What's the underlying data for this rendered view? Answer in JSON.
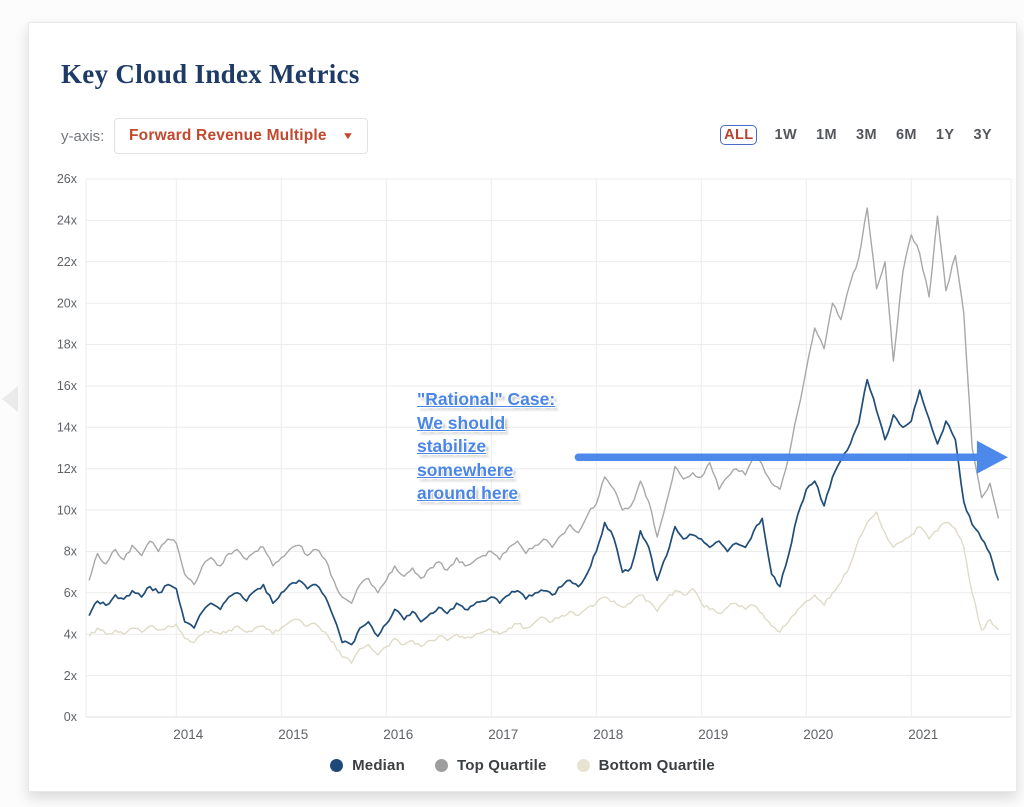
{
  "header": {
    "title": "Key Cloud Index Metrics"
  },
  "controls": {
    "y_axis_label": "y-axis:",
    "dropdown_value": "Forward Revenue Multiple",
    "ranges": [
      "ALL",
      "1W",
      "1M",
      "3M",
      "6M",
      "1Y",
      "3Y"
    ],
    "selected_range": "ALL"
  },
  "annotation": {
    "lines": [
      "\"Rational\" Case:",
      "We should",
      "stabilize",
      "somewhere",
      "around here"
    ],
    "color": "#4a86e8"
  },
  "legend": [
    {
      "label": "Median",
      "color": "#1e4877"
    },
    {
      "label": "Top Quartile",
      "color": "#9e9e9e"
    },
    {
      "label": "Bottom Quartile",
      "color": "#e8e3d1"
    }
  ],
  "colors": {
    "title": "#1d3b66",
    "dropdown_text": "#c2492e",
    "selected_range_text": "#b9412e",
    "selected_range_border": "#4a6bc6",
    "gridline": "#ececec",
    "axis_text": "#5f6368",
    "arrow_blue": "#4483ea"
  },
  "chart_data": {
    "type": "line",
    "title": "Key Cloud Index Metrics",
    "y_axis_metric": "Forward Revenue Multiple",
    "ylim": [
      0,
      26
    ],
    "y_ticks": [
      0,
      2,
      4,
      6,
      8,
      10,
      12,
      14,
      16,
      18,
      20,
      22,
      24,
      26
    ],
    "y_tick_labels": [
      "0x",
      "2x",
      "4x",
      "6x",
      "8x",
      "10x",
      "12x",
      "14x",
      "16x",
      "18x",
      "20x",
      "22x",
      "24x",
      "26x"
    ],
    "xlim": [
      2013.14,
      2021.95
    ],
    "x_ticks": [
      2014,
      2015,
      2016,
      2017,
      2018,
      2019,
      2020,
      2021
    ],
    "x_tick_labels": [
      "2014",
      "2015",
      "2016",
      "2017",
      "2018",
      "2019",
      "2020",
      "2021"
    ],
    "grid": true,
    "legend_position": "bottom",
    "x": [
      2013.17,
      2013.25,
      2013.33,
      2013.42,
      2013.5,
      2013.58,
      2013.67,
      2013.75,
      2013.83,
      2013.92,
      2014.0,
      2014.08,
      2014.17,
      2014.25,
      2014.33,
      2014.42,
      2014.5,
      2014.58,
      2014.67,
      2014.75,
      2014.83,
      2014.92,
      2015.0,
      2015.08,
      2015.17,
      2015.25,
      2015.33,
      2015.42,
      2015.5,
      2015.58,
      2015.67,
      2015.75,
      2015.83,
      2015.92,
      2016.0,
      2016.08,
      2016.17,
      2016.25,
      2016.33,
      2016.42,
      2016.5,
      2016.58,
      2016.67,
      2016.75,
      2016.83,
      2016.92,
      2017.0,
      2017.08,
      2017.17,
      2017.25,
      2017.33,
      2017.42,
      2017.5,
      2017.58,
      2017.67,
      2017.75,
      2017.83,
      2017.92,
      2018.0,
      2018.08,
      2018.17,
      2018.25,
      2018.33,
      2018.42,
      2018.5,
      2018.58,
      2018.67,
      2018.75,
      2018.83,
      2018.92,
      2019.0,
      2019.08,
      2019.17,
      2019.25,
      2019.33,
      2019.42,
      2019.5,
      2019.58,
      2019.67,
      2019.75,
      2019.83,
      2019.92,
      2020.0,
      2020.08,
      2020.17,
      2020.25,
      2020.33,
      2020.42,
      2020.5,
      2020.58,
      2020.67,
      2020.75,
      2020.83,
      2020.92,
      2021.0,
      2021.08,
      2021.17,
      2021.25,
      2021.33,
      2021.42,
      2021.5,
      2021.58,
      2021.67,
      2021.75,
      2021.83
    ],
    "series": [
      {
        "name": "Median",
        "color": "#214e78",
        "values": [
          4.9,
          5.6,
          5.4,
          5.9,
          5.7,
          6.1,
          5.8,
          6.3,
          6.0,
          6.4,
          6.2,
          4.6,
          4.3,
          5.1,
          5.5,
          5.2,
          5.8,
          6.0,
          5.6,
          6.1,
          6.4,
          5.5,
          6.0,
          6.4,
          6.6,
          6.2,
          6.4,
          5.8,
          4.8,
          3.6,
          3.5,
          4.3,
          4.6,
          3.9,
          4.5,
          5.2,
          4.7,
          5.1,
          4.6,
          5.0,
          5.3,
          5.0,
          5.5,
          5.2,
          5.4,
          5.6,
          5.8,
          5.5,
          5.9,
          6.1,
          5.7,
          6.0,
          6.1,
          5.9,
          6.3,
          6.6,
          6.3,
          7.0,
          8.0,
          9.4,
          8.6,
          7.0,
          7.2,
          9.0,
          8.2,
          6.6,
          7.8,
          9.2,
          8.6,
          8.8,
          8.6,
          8.2,
          8.5,
          8.0,
          8.4,
          8.2,
          9.0,
          9.6,
          6.9,
          6.3,
          7.8,
          9.8,
          11.0,
          11.4,
          10.2,
          11.6,
          12.4,
          13.2,
          14.2,
          16.3,
          14.8,
          13.4,
          14.6,
          14.0,
          14.3,
          15.8,
          14.4,
          13.2,
          14.3,
          13.4,
          10.4,
          9.3,
          8.6,
          7.9,
          6.6
        ]
      },
      {
        "name": "Top Quartile",
        "color": "#a8a8a8",
        "values": [
          6.6,
          7.9,
          7.4,
          8.1,
          7.6,
          8.3,
          7.8,
          8.5,
          8.0,
          8.6,
          8.4,
          6.9,
          6.4,
          7.3,
          7.7,
          7.3,
          7.9,
          8.1,
          7.6,
          8.0,
          8.2,
          7.3,
          7.7,
          8.1,
          8.3,
          7.8,
          8.1,
          7.6,
          6.6,
          5.8,
          5.5,
          6.4,
          6.7,
          6.0,
          6.6,
          7.3,
          6.8,
          7.2,
          6.7,
          7.2,
          7.5,
          7.1,
          7.7,
          7.3,
          7.5,
          7.8,
          8.0,
          7.6,
          8.2,
          8.5,
          7.9,
          8.3,
          8.6,
          8.2,
          8.8,
          9.3,
          8.9,
          9.8,
          10.3,
          11.6,
          11.0,
          10.0,
          10.2,
          11.4,
          10.4,
          8.7,
          10.4,
          12.1,
          11.5,
          11.8,
          11.6,
          12.3,
          11.0,
          11.6,
          12.0,
          11.7,
          12.6,
          12.2,
          11.3,
          11.0,
          12.5,
          14.8,
          16.8,
          18.8,
          17.8,
          20.0,
          19.2,
          21.0,
          22.2,
          24.6,
          20.7,
          22.0,
          17.2,
          21.5,
          23.3,
          22.4,
          20.3,
          24.2,
          20.6,
          22.3,
          19.5,
          13.0,
          10.6,
          11.3,
          9.6
        ]
      },
      {
        "name": "Bottom Quartile",
        "color": "#e0dbc8",
        "values": [
          3.9,
          4.3,
          4.0,
          4.2,
          4.0,
          4.3,
          4.1,
          4.4,
          4.2,
          4.4,
          4.5,
          3.8,
          3.6,
          4.0,
          4.2,
          4.0,
          4.2,
          4.4,
          4.1,
          4.3,
          4.4,
          4.0,
          4.3,
          4.6,
          4.7,
          4.4,
          4.5,
          4.1,
          3.6,
          2.9,
          2.6,
          3.3,
          3.5,
          3.0,
          3.4,
          3.8,
          3.5,
          3.7,
          3.4,
          3.7,
          3.9,
          3.7,
          4.0,
          3.8,
          3.9,
          4.1,
          4.2,
          4.0,
          4.3,
          4.5,
          4.3,
          4.6,
          4.8,
          4.6,
          4.9,
          5.1,
          4.9,
          5.3,
          5.5,
          5.8,
          5.6,
          5.3,
          5.5,
          5.9,
          5.6,
          5.1,
          5.7,
          6.1,
          5.9,
          6.2,
          5.5,
          5.2,
          5.0,
          5.3,
          5.5,
          5.2,
          5.4,
          5.0,
          4.4,
          4.1,
          4.6,
          5.2,
          5.6,
          5.9,
          5.4,
          6.0,
          6.5,
          7.4,
          8.6,
          9.4,
          9.9,
          8.9,
          8.2,
          8.5,
          8.8,
          9.2,
          8.6,
          9.0,
          9.4,
          9.1,
          8.2,
          6.0,
          4.2,
          4.7,
          4.2
        ]
      }
    ],
    "arrow": {
      "from_x": 2017.83,
      "to_x": 2021.92,
      "y": 12.55,
      "color": "#4483ea"
    }
  }
}
